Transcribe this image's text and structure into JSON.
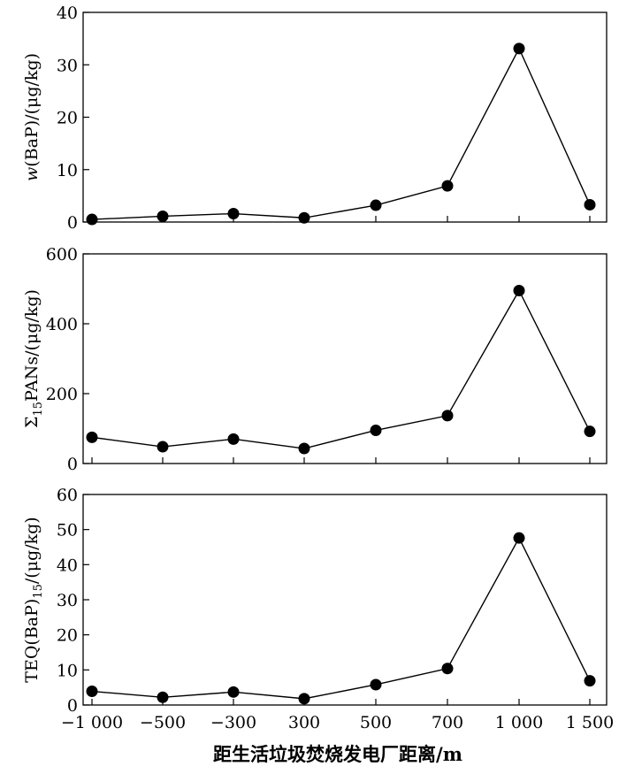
{
  "chart_data": [
    {
      "type": "line",
      "categories": [
        "−1 000",
        "−500",
        "−300",
        "300",
        "500",
        "700",
        "1 000",
        "1 500"
      ],
      "values": [
        0.5,
        1.1,
        1.6,
        0.8,
        3.2,
        6.9,
        33.1,
        3.3
      ],
      "ylabel_prefix": "w",
      "ylabel_rest": "(BaP)/(μg/kg)",
      "ylim": [
        0,
        40
      ],
      "yticks": [
        "0",
        "10",
        "20",
        "30",
        "40"
      ]
    },
    {
      "type": "line",
      "categories": [
        "−1 000",
        "−500",
        "−300",
        "300",
        "500",
        "700",
        "1 000",
        "1 500"
      ],
      "values": [
        75,
        48,
        70,
        43,
        95,
        137,
        495,
        92
      ],
      "ylabel_main": "Σ",
      "ylabel_sub": "15",
      "ylabel_rest": "PANs/(μg/kg)",
      "ylim": [
        0,
        600
      ],
      "yticks": [
        "0",
        "200",
        "400",
        "600"
      ]
    },
    {
      "type": "line",
      "categories": [
        "−1 000",
        "−500",
        "−300",
        "300",
        "500",
        "700",
        "1 000",
        "1 500"
      ],
      "values": [
        3.9,
        2.2,
        3.7,
        1.8,
        5.8,
        10.4,
        47.6,
        6.9
      ],
      "ylabel_main": "TEQ(BaP)",
      "ylabel_sub": "15",
      "ylabel_rest": "/(μg/kg)",
      "ylim": [
        0,
        60
      ],
      "yticks": [
        "0",
        "10",
        "20",
        "30",
        "40",
        "50",
        "60"
      ]
    }
  ],
  "xaxis": {
    "label": "距生活垃圾焚烧发电厂距离/m",
    "ticks": [
      "−1 000",
      "−500",
      "−300",
      "300",
      "500",
      "700",
      "1 000",
      "1 500"
    ]
  },
  "colors": {
    "line": "#000000",
    "marker": "#000000"
  }
}
